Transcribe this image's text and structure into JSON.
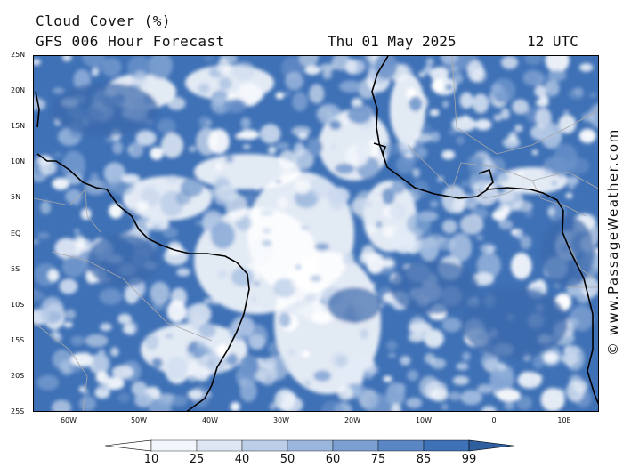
{
  "header": {
    "title": "Cloud Cover (%)",
    "subtitle": "GFS 006 Hour Forecast",
    "date": "Thu 01 May 2025",
    "time": "12 UTC"
  },
  "map": {
    "latitude_ticks": [
      "25N",
      "20N",
      "15N",
      "10N",
      "5N",
      "EQ",
      "5S",
      "10S",
      "15S",
      "20S",
      "25S"
    ],
    "longitude_ticks": [
      "60W",
      "50W",
      "40W",
      "30W",
      "20W",
      "10W",
      "0",
      "10E"
    ],
    "lat_range": [
      -25,
      25
    ],
    "lon_range": [
      -65,
      14
    ],
    "ocean_color": "#3f71b6",
    "coastline_color": "#000000",
    "border_color": "#aaaaaa"
  },
  "colorbar": {
    "labels": [
      "10",
      "25",
      "40",
      "50",
      "60",
      "75",
      "85",
      "99"
    ],
    "colors": [
      "#ffffff",
      "#f2f5fb",
      "#dde6f2",
      "#bccee8",
      "#9bb6dc",
      "#7b9fd0",
      "#5a86c4",
      "#3f71b6",
      "#2f5f9f"
    ]
  },
  "watermark": "© www.PassageWeather.com"
}
